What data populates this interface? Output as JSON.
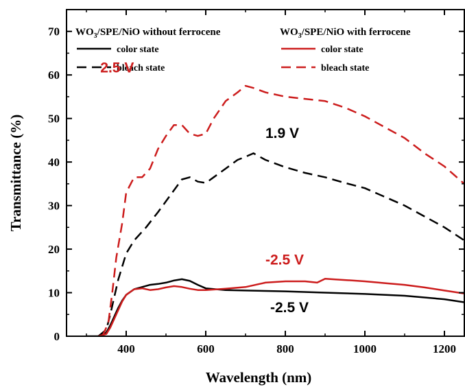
{
  "chart_data": {
    "type": "line",
    "xlabel": "Wavelength (nm)",
    "ylabel": "Transmittance (%)",
    "xlim": [
      250,
      1250
    ],
    "ylim": [
      0,
      75
    ],
    "xticks": [
      400,
      600,
      800,
      1000,
      1200
    ],
    "yticks": [
      0,
      10,
      20,
      30,
      40,
      50,
      60,
      70
    ],
    "legend": {
      "placement": "top",
      "groups": [
        {
          "title_parts": [
            "WO",
            "3",
            "/SPE/NiO without ferrocene"
          ],
          "color": "#000000",
          "entries": [
            "color state",
            "bleach state"
          ]
        },
        {
          "title_parts": [
            "WO",
            "3",
            "/SPE/NiO with ferrocene"
          ],
          "color": "#cc1c1c",
          "entries": [
            "color state",
            "bleach state"
          ]
        }
      ]
    },
    "annotations": [
      {
        "text": "2.5 V",
        "x": 335,
        "y": 60.6,
        "color": "#cc1c1c"
      },
      {
        "text": "1.9 V",
        "x": 750,
        "y": 45.5,
        "color": "#000000"
      },
      {
        "text": "-2.5 V",
        "x": 750,
        "y": 16.5,
        "color": "#cc1c1c"
      },
      {
        "text": "-2.5 V",
        "x": 762,
        "y": 5.5,
        "color": "#000000"
      }
    ],
    "series": [
      {
        "name": "color state",
        "group": "WO3/SPE/NiO without ferrocene",
        "color": "#000000",
        "dash": "solid",
        "x": [
          300,
          330,
          350,
          360,
          370,
          380,
          390,
          400,
          420,
          440,
          460,
          480,
          500,
          520,
          540,
          560,
          580,
          600,
          650,
          700,
          750,
          800,
          900,
          1000,
          1100,
          1200,
          1250
        ],
        "y": [
          0,
          0,
          0.8,
          2.5,
          4.5,
          6.5,
          8.2,
          9.5,
          10.8,
          11.3,
          11.8,
          12.0,
          12.3,
          12.8,
          13.1,
          12.7,
          11.8,
          11.0,
          10.6,
          10.5,
          10.4,
          10.3,
          10.0,
          9.7,
          9.3,
          8.5,
          7.8
        ]
      },
      {
        "name": "bleach state",
        "group": "WO3/SPE/NiO without ferrocene",
        "color": "#000000",
        "dash": "dashed",
        "x": [
          330,
          350,
          360,
          370,
          380,
          400,
          420,
          450,
          480,
          500,
          520,
          540,
          560,
          580,
          600,
          620,
          650,
          680,
          700,
          720,
          750,
          800,
          850,
          900,
          950,
          1000,
          1050,
          1100,
          1150,
          1200,
          1250
        ],
        "y": [
          0,
          1.5,
          5,
          9,
          13,
          19,
          22,
          25,
          28.5,
          31,
          33.5,
          36,
          36.5,
          35.5,
          35.2,
          36.5,
          38.5,
          40.5,
          41.2,
          42.0,
          40.5,
          38.8,
          37.5,
          36.5,
          35.2,
          34.0,
          32.0,
          30.0,
          27.5,
          25.0,
          22.0
        ]
      },
      {
        "name": "color state",
        "group": "WO3/SPE/NiO with ferrocene",
        "color": "#cc1c1c",
        "dash": "solid",
        "x": [
          330,
          350,
          360,
          370,
          380,
          390,
          400,
          420,
          440,
          460,
          480,
          500,
          520,
          540,
          560,
          580,
          600,
          650,
          700,
          750,
          800,
          850,
          880,
          900,
          950,
          1000,
          1050,
          1100,
          1150,
          1200,
          1250
        ],
        "y": [
          0,
          0.5,
          2,
          4,
          6,
          8,
          9.5,
          10.8,
          11.0,
          10.6,
          10.8,
          11.2,
          11.5,
          11.3,
          10.9,
          10.6,
          10.6,
          10.9,
          11.3,
          12.3,
          12.6,
          12.6,
          12.3,
          13.2,
          12.9,
          12.6,
          12.2,
          11.8,
          11.2,
          10.5,
          9.8
        ]
      },
      {
        "name": "bleach state",
        "group": "WO3/SPE/NiO with ferrocene",
        "color": "#cc1c1c",
        "dash": "dashed",
        "x": [
          340,
          355,
          365,
          375,
          390,
          400,
          420,
          440,
          460,
          480,
          500,
          520,
          540,
          560,
          580,
          600,
          620,
          650,
          680,
          700,
          720,
          750,
          800,
          850,
          900,
          950,
          1000,
          1050,
          1100,
          1150,
          1200,
          1250
        ],
        "y": [
          0,
          3,
          10,
          18,
          26,
          33,
          36.5,
          36.5,
          38.5,
          43,
          46,
          48.5,
          48.5,
          46.5,
          46.0,
          46.5,
          50,
          54,
          56,
          57.5,
          57.0,
          56.0,
          55.0,
          54.5,
          54.0,
          52.5,
          50.5,
          48.0,
          45.5,
          42.0,
          39.0,
          35.0
        ]
      }
    ]
  }
}
